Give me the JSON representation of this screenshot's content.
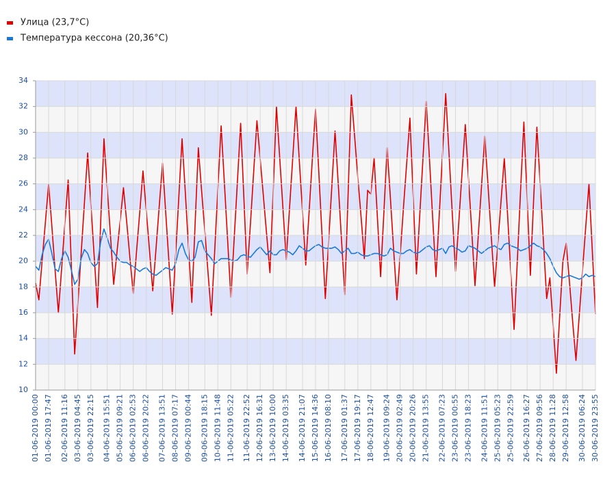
{
  "chart_data": {
    "type": "line",
    "categories": [
      "01-06-2019 00:00",
      null,
      null,
      null,
      "01-06-2019 17:47",
      null,
      null,
      null,
      null,
      "02-06-2019 11:16",
      null,
      null,
      null,
      "03-06-2019 04:45",
      null,
      null,
      null,
      "03-06-2019 22:15",
      null,
      null,
      null,
      null,
      "04-06-2019 15:51",
      null,
      null,
      null,
      "05-06-2019 09:21",
      null,
      null,
      null,
      "06-06-2019 02:53",
      null,
      null,
      null,
      "06-06-2019 20:22",
      null,
      null,
      null,
      null,
      "07-06-2019 13:51",
      null,
      null,
      null,
      "08-06-2019 07:17",
      null,
      null,
      null,
      "09-06-2019 00:44",
      null,
      null,
      null,
      null,
      "09-06-2019 18:15",
      null,
      null,
      null,
      "10-06-2019 11:48",
      null,
      null,
      null,
      "11-06-2019 05:22",
      null,
      null,
      null,
      null,
      "11-06-2019 22:52",
      null,
      null,
      null,
      "12-06-2019 16:31",
      null,
      null,
      null,
      "13-06-2019 10:00",
      null,
      null,
      null,
      "14-06-2019 03:35",
      null,
      null,
      null,
      null,
      "14-06-2019 21:07",
      null,
      null,
      null,
      "15-06-2019 14:36",
      null,
      null,
      null,
      "16-06-2019 08:10",
      null,
      null,
      null,
      null,
      "17-06-2019 01:37",
      null,
      null,
      null,
      "17-06-2019 19:17",
      null,
      null,
      null,
      "18-06-2019 12:47",
      null,
      null,
      null,
      null,
      "19-06-2019 09:24",
      null,
      null,
      null,
      "20-06-2019 02:49",
      null,
      null,
      null,
      "20-06-2019 20:26",
      null,
      null,
      null,
      "21-06-2019 13:55",
      null,
      null,
      null,
      null,
      "22-06-2019 07:23",
      null,
      null,
      null,
      "23-06-2019 00:55",
      null,
      null,
      null,
      "23-06-2019 18:23",
      null,
      null,
      null,
      null,
      "24-06-2019 11:51",
      null,
      null,
      null,
      "25-06-2019 05:23",
      null,
      null,
      null,
      "25-06-2019 22:59",
      null,
      null,
      null,
      null,
      "26-06-2019 16:27",
      null,
      null,
      null,
      "27-06-2019 09:56",
      null,
      null,
      null,
      "28-06-2019 11:28",
      null,
      null,
      null,
      "29-06-2019 12:58",
      null,
      null,
      null,
      null,
      "30-06-2019 06:24",
      null,
      null,
      null,
      "30-06-2019 23:55"
    ],
    "series": [
      {
        "name": "Улица (23,7°C)",
        "color": "#e00000",
        "values": [
          18.3,
          17,
          20,
          23,
          26,
          22.7,
          19.3,
          16,
          19.4,
          22.9,
          26.3,
          19.6,
          12.8,
          16.7,
          20.6,
          24.5,
          28.4,
          24.4,
          20.4,
          16.4,
          23,
          29.5,
          25.7,
          22,
          18.2,
          20.7,
          23.2,
          25.7,
          23,
          20.2,
          17.5,
          20.7,
          23.8,
          27,
          23.9,
          20.8,
          17.7,
          21,
          24.3,
          27.6,
          23.7,
          19.8,
          15.9,
          20.4,
          25,
          29.5,
          25.3,
          21,
          16.8,
          22.8,
          28.8,
          25.5,
          22.3,
          19,
          15.8,
          20.7,
          25.6,
          30.5,
          26.1,
          21.6,
          17.2,
          21.7,
          26.2,
          30.7,
          24.8,
          19,
          22.9,
          26.9,
          30.9,
          27.9,
          25,
          22,
          19.1,
          25.5,
          32,
          28,
          24.1,
          20.1,
          24.1,
          28,
          32,
          27.9,
          23.8,
          19.7,
          23.7,
          27.8,
          31.8,
          26.9,
          22,
          17.1,
          21.4,
          25.8,
          30.1,
          25.9,
          21.6,
          17.4,
          25.2,
          32.9,
          29.7,
          26.5,
          23.4,
          20.2,
          25.5,
          25.2,
          28,
          23.4,
          18.8,
          23.8,
          28.8,
          24.9,
          20.9,
          17,
          20.5,
          24.1,
          27.6,
          31.1,
          25,
          19,
          23.5,
          27.9,
          32.4,
          27.9,
          23.3,
          18.8,
          23.5,
          28.3,
          33,
          28.4,
          23.8,
          19.2,
          23,
          26.8,
          30.6,
          26.4,
          22.3,
          18.1,
          22,
          25.8,
          29.7,
          25.8,
          21.9,
          18,
          21.3,
          24.7,
          28,
          23.6,
          19.1,
          14.7,
          20.1,
          25.5,
          30.8,
          24.9,
          18.9,
          24.7,
          30.4,
          26,
          21.6,
          17.1,
          18.7,
          15,
          11.3,
          15.7,
          20,
          21.4,
          18.4,
          15.3,
          12.3,
          15.7,
          19.2,
          22.6,
          26,
          21,
          15.9
        ]
      },
      {
        "name": "Температура кессона (20,36°C)",
        "color": "#1a78d8",
        "values": [
          19.6,
          19.3,
          20.5,
          21.3,
          21.7,
          20.6,
          19.4,
          19.2,
          20.2,
          20.8,
          20.3,
          19.3,
          18.2,
          18.6,
          20.2,
          20.9,
          20.6,
          19.9,
          19.6,
          19.8,
          21.5,
          22.5,
          21.8,
          21,
          20.7,
          20.3,
          20,
          19.9,
          19.9,
          19.7,
          19.6,
          19.4,
          19.2,
          19.4,
          19.5,
          19.2,
          19,
          18.9,
          19.1,
          19.3,
          19.5,
          19.4,
          19.3,
          19.8,
          20.9,
          21.4,
          20.6,
          20.1,
          20,
          20.3,
          21.5,
          21.6,
          20.8,
          20.5,
          20.2,
          19.8,
          20,
          20.2,
          20.2,
          20.2,
          20.1,
          20,
          20.1,
          20.4,
          20.5,
          20.4,
          20.3,
          20.6,
          20.9,
          21.1,
          20.8,
          20.5,
          20.8,
          20.5,
          20.5,
          20.8,
          20.9,
          20.8,
          20.7,
          20.5,
          20.8,
          21.2,
          21,
          20.8,
          20.8,
          21,
          21.2,
          21.3,
          21.1,
          21,
          21,
          21,
          21.1,
          20.9,
          20.6,
          20.8,
          21,
          20.6,
          20.6,
          20.7,
          20.5,
          20.4,
          20.4,
          20.5,
          20.6,
          20.6,
          20.5,
          20.4,
          20.5,
          21,
          20.8,
          20.7,
          20.6,
          20.6,
          20.8,
          20.9,
          20.7,
          20.6,
          20.7,
          20.9,
          21.1,
          21.2,
          20.9,
          20.8,
          20.9,
          21,
          20.6,
          21.1,
          21.2,
          21,
          20.9,
          20.7,
          20.8,
          21.2,
          21.1,
          21,
          20.8,
          20.6,
          20.8,
          21,
          21.1,
          21.2,
          21,
          20.9,
          21.3,
          21.4,
          21.2,
          21.1,
          21,
          20.8,
          20.9,
          21,
          21.2,
          21.4,
          21.2,
          21.1,
          20.9,
          20.6,
          20.2,
          19.6,
          19.1,
          18.8,
          18.7,
          18.8,
          18.9,
          18.8,
          18.7,
          18.6,
          18.7,
          19,
          18.8,
          18.9,
          18.8
        ]
      }
    ],
    "ylim": [
      10,
      34
    ],
    "yticks": [
      10,
      12,
      14,
      16,
      18,
      20,
      22,
      24,
      26,
      28,
      30,
      32,
      34
    ],
    "grid": true,
    "legend": "top-left"
  }
}
